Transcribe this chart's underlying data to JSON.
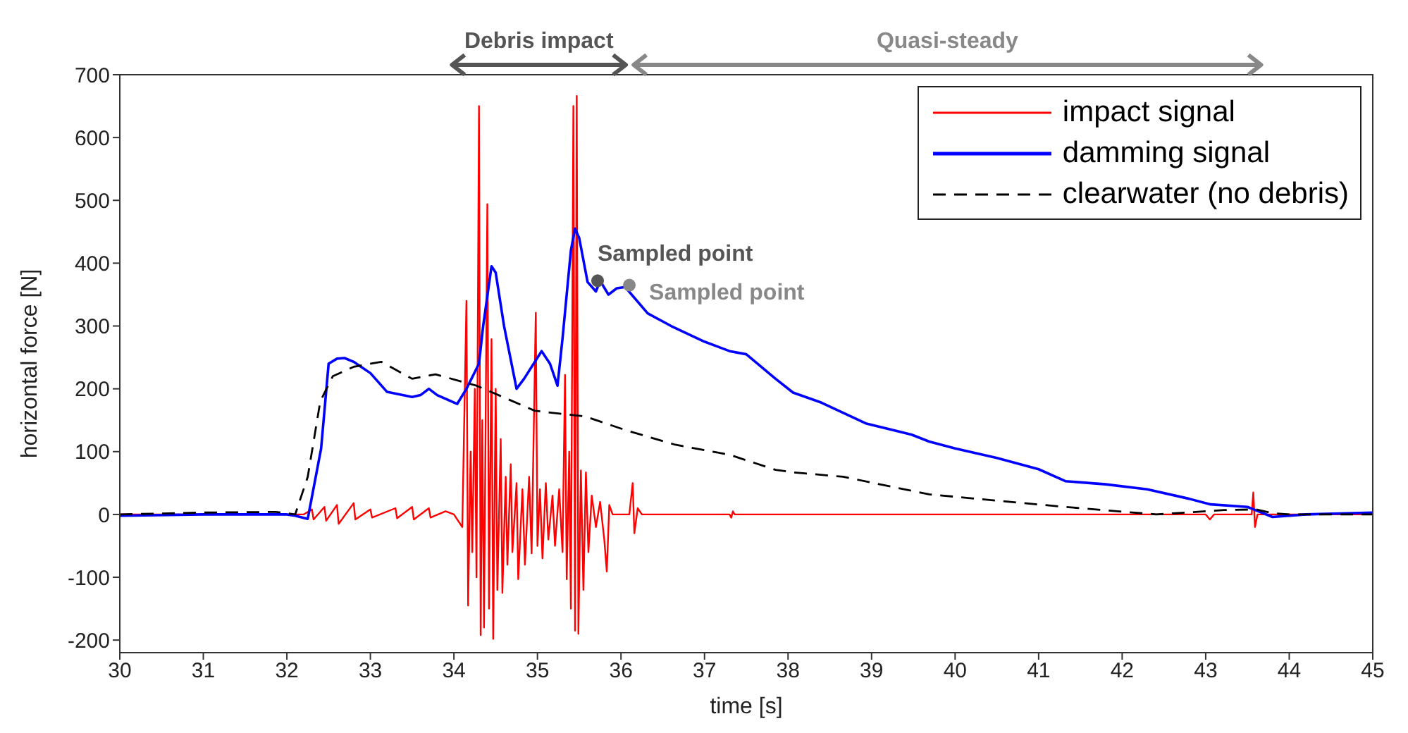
{
  "chart_data": {
    "type": "line",
    "xlabel": "time [s]",
    "ylabel": "horizontal force [N]",
    "xlim": [
      30,
      45
    ],
    "xticks": [
      30,
      31,
      32,
      33,
      34,
      35,
      36,
      37,
      38,
      39,
      40,
      41,
      42,
      43,
      44,
      45
    ],
    "ylim": [
      -220,
      700
    ],
    "yticks": [
      -200,
      -100,
      0,
      100,
      200,
      300,
      400,
      500,
      600,
      700
    ],
    "grid": false,
    "legend": "top right",
    "marker": "none",
    "series": [
      {
        "name": "impact signal",
        "color": "#ff0000",
        "line_style": "solid",
        "x": [
          30,
          32.2,
          32.3,
          32.32,
          32.45,
          32.47,
          32.6,
          32.62,
          32.8,
          32.82,
          33.0,
          33.02,
          33.3,
          33.32,
          33.5,
          33.52,
          33.7,
          33.72,
          33.9,
          34.0,
          34.1,
          34.15,
          34.17,
          34.2,
          34.22,
          34.25,
          34.27,
          34.3,
          34.32,
          34.34,
          34.36,
          34.4,
          34.42,
          34.45,
          34.47,
          34.5,
          34.52,
          34.56,
          34.58,
          34.62,
          34.64,
          34.68,
          34.7,
          34.75,
          34.77,
          34.82,
          34.85,
          34.9,
          34.93,
          34.98,
          35.0,
          35.03,
          35.06,
          35.1,
          35.13,
          35.18,
          35.21,
          35.26,
          35.3,
          35.33,
          35.35,
          35.38,
          35.4,
          35.43,
          35.45,
          35.47,
          35.49,
          35.52,
          35.55,
          35.58,
          35.61,
          35.65,
          35.7,
          35.75,
          35.8,
          35.83,
          35.86,
          35.9,
          36.1,
          36.14,
          36.16,
          36.2,
          36.25,
          37.3,
          37.32,
          37.34,
          37.36,
          43.0,
          43.05,
          43.1,
          43.55,
          43.57,
          43.59,
          43.62,
          45
        ],
        "values": [
          0,
          0,
          8,
          -8,
          12,
          -10,
          15,
          -15,
          18,
          -8,
          8,
          -5,
          10,
          -6,
          12,
          -8,
          10,
          -5,
          5,
          0,
          -20,
          340,
          -145,
          100,
          -60,
          200,
          -100,
          650,
          -192,
          150,
          -180,
          494,
          -150,
          279,
          -198,
          200,
          -120,
          120,
          -125,
          60,
          -80,
          80,
          -60,
          50,
          -103,
          40,
          -80,
          60,
          -62,
          321,
          -50,
          40,
          -70,
          50,
          -40,
          30,
          -50,
          40,
          -60,
          222,
          -103,
          100,
          -150,
          650,
          -185,
          666,
          -190,
          70,
          -120,
          67,
          -60,
          30,
          -20,
          20,
          -40,
          -91,
          15,
          0,
          0,
          50,
          -30,
          10,
          0,
          0,
          -5,
          5,
          0,
          0,
          -8,
          0,
          0,
          35,
          -20,
          0,
          0
        ]
      },
      {
        "name": "damming signal",
        "color": "#0000ff",
        "line_style": "solid",
        "x": [
          30,
          31,
          32,
          32.1,
          32.25,
          32.41,
          32.5,
          32.6,
          32.69,
          32.8,
          33.0,
          33.2,
          33.5,
          33.6,
          33.7,
          33.8,
          34.04,
          34.15,
          34.3,
          34.35,
          34.45,
          34.5,
          34.6,
          34.75,
          34.84,
          35.05,
          35.15,
          35.24,
          35.3,
          35.4,
          35.45,
          35.5,
          35.6,
          35.7,
          35.75,
          35.85,
          35.95,
          36.05,
          36.32,
          36.6,
          37.0,
          37.3,
          37.5,
          37.85,
          38.06,
          38.4,
          38.93,
          39.48,
          39.69,
          40.0,
          40.5,
          41.0,
          41.32,
          41.8,
          42.3,
          42.8,
          43.06,
          43.5,
          43.8,
          44.2,
          45
        ],
        "values": [
          -2,
          0,
          0,
          -2,
          -7,
          105,
          240,
          248,
          249,
          243,
          225,
          195,
          187,
          190,
          200,
          190,
          176,
          200,
          240,
          300,
          395,
          385,
          300,
          200,
          216,
          260,
          240,
          205,
          280,
          420,
          455,
          440,
          370,
          355,
          372,
          350,
          360,
          362,
          320,
          300,
          275,
          260,
          255,
          216,
          194,
          178,
          145,
          127,
          116,
          105,
          90,
          72,
          53,
          48,
          40,
          25,
          16,
          12,
          -4,
          0,
          3
        ]
      },
      {
        "name": "clearwater (no debris)",
        "color": "#000000",
        "line_style": "dashed",
        "x": [
          30,
          31,
          31.87,
          32.1,
          32.25,
          32.4,
          32.55,
          32.8,
          33.13,
          33.5,
          33.78,
          34.27,
          34.97,
          35.57,
          36.06,
          36.65,
          37.3,
          37.85,
          38.06,
          38.66,
          39.69,
          40.5,
          41.32,
          42.41,
          43.22,
          43.6,
          43.8,
          44,
          45
        ],
        "values": [
          0,
          3,
          4,
          0,
          60,
          180,
          220,
          235,
          243,
          216,
          223,
          205,
          165,
          156,
          134,
          111,
          95,
          71,
          67,
          60,
          32,
          22,
          12,
          0,
          7,
          8,
          2,
          0,
          0
        ]
      },
      {
        "type": "scatter",
        "marker": "circle",
        "colors": [
          "#555555",
          "#888888"
        ],
        "x": [
          35.72,
          36.1
        ],
        "values": [
          372,
          365
        ]
      }
    ],
    "annotations": [
      {
        "text": "Sampled point",
        "x": 35.72,
        "y": 372
      },
      {
        "text": "Sampled point",
        "x": 36.1,
        "y": 365
      },
      "Debris impact",
      "Quasi-steady"
    ]
  }
}
